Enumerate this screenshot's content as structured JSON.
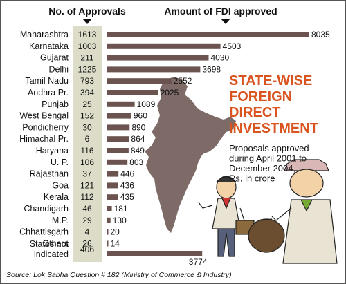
{
  "chart_data": {
    "type": "bar",
    "orientation": "horizontal",
    "column_headers": [
      "No. of Approvals",
      "Amount of FDI approved"
    ],
    "categories": [
      "Maharashtra",
      "Karnataka",
      "Gujarat",
      "Delhi",
      "Tamil Nadu",
      "Andhra Pr.",
      "Punjab",
      "West Bengal",
      "Pondicherry",
      "Himachal Pr.",
      "Haryana",
      "U. P.",
      "Rajasthan",
      "Goa",
      "Kerala",
      "Chandigarh",
      "M.P.",
      "Chhattisgarh",
      "Others",
      "States not indicated"
    ],
    "category_lines": [
      [
        "Maharashtra"
      ],
      [
        "Karnataka"
      ],
      [
        "Gujarat"
      ],
      [
        "Delhi"
      ],
      [
        "Tamil Nadu"
      ],
      [
        "Andhra Pr."
      ],
      [
        "Punjab"
      ],
      [
        "West Bengal"
      ],
      [
        "Pondicherry"
      ],
      [
        "Himachal Pr."
      ],
      [
        "Haryana"
      ],
      [
        "U. P."
      ],
      [
        "Rajasthan"
      ],
      [
        "Goa"
      ],
      [
        "Kerala"
      ],
      [
        "Chandigarh"
      ],
      [
        "M.P."
      ],
      [
        "Chhattisgarh"
      ],
      [
        "Others"
      ],
      [
        "States not",
        "indicated"
      ]
    ],
    "approvals": [
      1613,
      1003,
      211,
      1225,
      793,
      394,
      25,
      152,
      30,
      6,
      116,
      106,
      37,
      121,
      112,
      46,
      29,
      4,
      26,
      406
    ],
    "series": [
      {
        "values": [
          8035,
          4503,
          4030,
          3698,
          2552,
          2025,
          1089,
          960,
          890,
          864,
          849,
          803,
          446,
          436,
          435,
          181,
          130,
          20,
          14,
          3774
        ]
      }
    ],
    "title_lines": [
      "STATE-WISE",
      "FOREIGN",
      "DIRECT",
      "INVESTMENT"
    ],
    "subtitle_lines": [
      "Proposals approved",
      "during April 2001 to",
      "December  2004,",
      "Rs. in crore"
    ],
    "xlim": [
      0,
      8035
    ],
    "source": "Source: Lok Sabha Question # 182 (Ministry of Commerce & Industry)"
  },
  "colors": {
    "bar": "#6b5350",
    "approvals_column": "#dcdcc8",
    "title": "#d9541e",
    "map": "#7e6a66",
    "text": "#111111"
  }
}
